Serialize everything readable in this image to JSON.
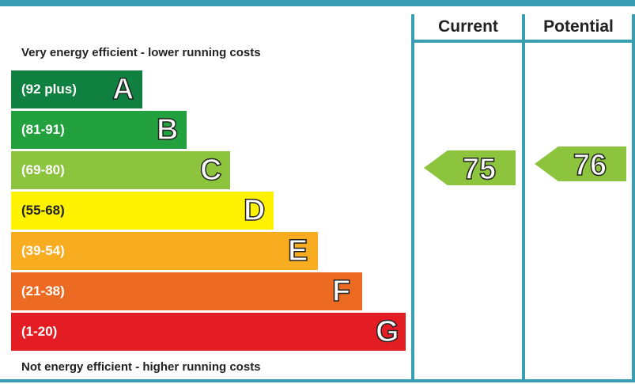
{
  "chart_data": {
    "type": "bar",
    "headers": {
      "current": "Current",
      "potential": "Potential"
    },
    "top_note": "Very energy efficient - lower running costs",
    "bottom_note": "Not energy efficient - higher running costs",
    "bands": [
      {
        "letter": "A",
        "range": "(92 plus)",
        "color": "#0f8040",
        "text_dark": false
      },
      {
        "letter": "B",
        "range": "(81-91)",
        "color": "#22a13e",
        "text_dark": false
      },
      {
        "letter": "C",
        "range": "(69-80)",
        "color": "#8cc43e",
        "text_dark": false
      },
      {
        "letter": "D",
        "range": "(55-68)",
        "color": "#fff200",
        "text_dark": true
      },
      {
        "letter": "E",
        "range": "(39-54)",
        "color": "#f7ad1f",
        "text_dark": false
      },
      {
        "letter": "F",
        "range": "(21-38)",
        "color": "#ed6a22",
        "text_dark": false
      },
      {
        "letter": "G",
        "range": "(1-20)",
        "color": "#e31d23",
        "text_dark": false
      }
    ],
    "current": {
      "value": "75",
      "band": "C",
      "color": "#8cc43e"
    },
    "potential": {
      "value": "76",
      "band": "C",
      "color": "#8cc43e"
    }
  }
}
